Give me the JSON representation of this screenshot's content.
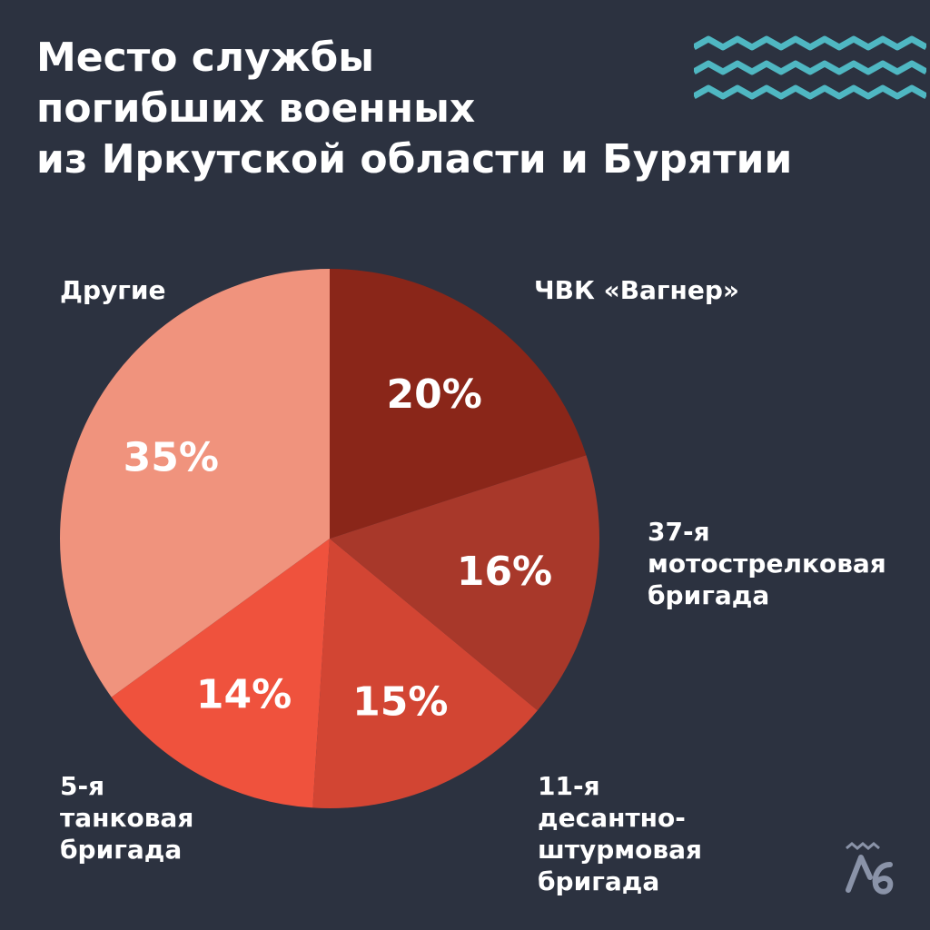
{
  "title_lines": [
    "Место службы",
    "погибших военных",
    "из Иркутской области и Бурятии"
  ],
  "colors": {
    "background": "#2c3240",
    "accent_waves": "#4fb7c2",
    "text": "#ffffff"
  },
  "chart_data": {
    "type": "pie",
    "title": "Место службы погибших военных из Иркутской области и Бурятии",
    "start": "12 o'clock",
    "direction": "clockwise",
    "slices": [
      {
        "label_lines": [
          "ЧВК «Вагнер»"
        ],
        "value": 20,
        "value_label": "20%",
        "color": "#8a2619"
      },
      {
        "label_lines": [
          "37-я",
          "мотострелковая",
          "бригада"
        ],
        "value": 16,
        "value_label": "16%",
        "color": "#a8382a"
      },
      {
        "label_lines": [
          "11-я",
          "десантно-",
          "штурмовая",
          "бригада"
        ],
        "value": 15,
        "value_label": "15%",
        "color": "#d24533"
      },
      {
        "label_lines": [
          "5-я",
          "танковая",
          "бригада"
        ],
        "value": 14,
        "value_label": "14%",
        "color": "#ef523d"
      },
      {
        "label_lines": [
          "Другие"
        ],
        "value": 35,
        "value_label": "35%",
        "color": "#f0937d"
      }
    ]
  },
  "logo": {
    "icon": "lb-logo-icon",
    "color": "#8a93a8"
  }
}
